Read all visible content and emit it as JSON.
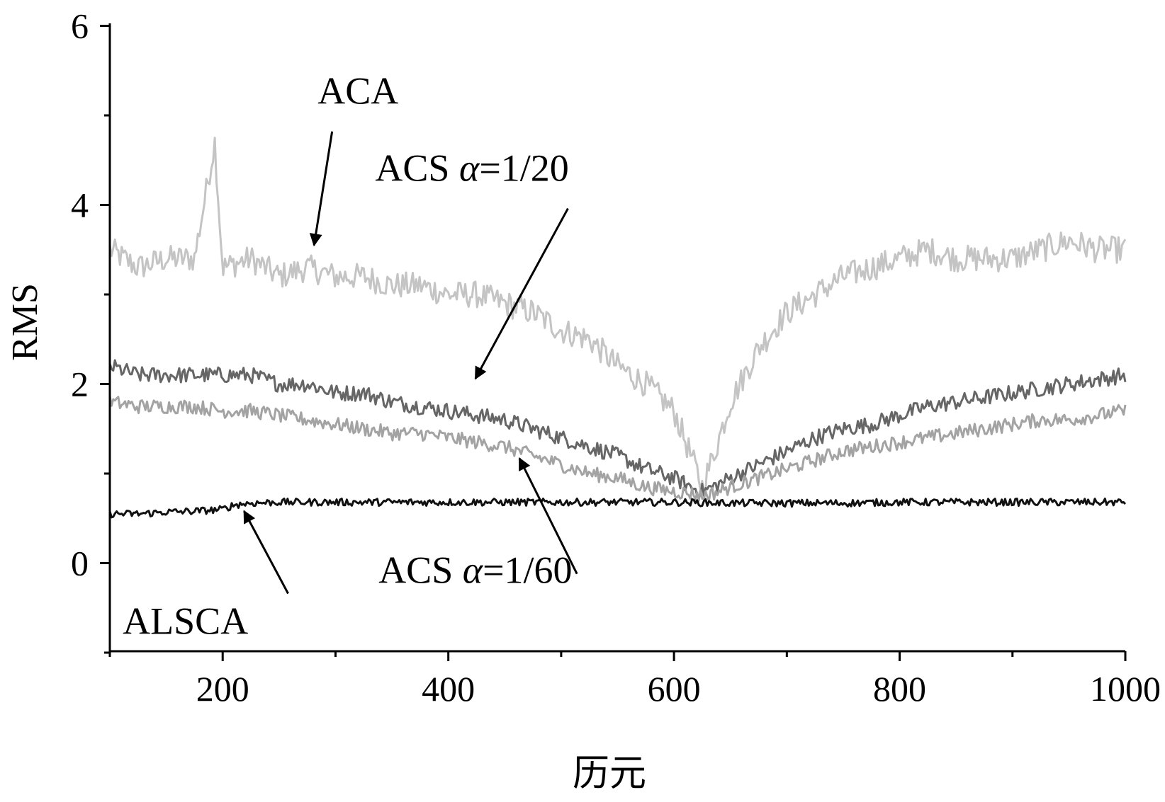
{
  "chart_data": {
    "type": "line",
    "title": "",
    "xlabel": "历元",
    "ylabel": "RMS",
    "xlim": [
      100,
      1000
    ],
    "ylim": [
      -1,
      6
    ],
    "xticks": [
      200,
      400,
      600,
      800,
      1000
    ],
    "yticks": [
      0,
      2,
      4,
      6
    ],
    "grid": false,
    "legend": "none",
    "series": [
      {
        "key": "aca",
        "color": "#c4c4c4",
        "x": [
          100,
          125,
          150,
          175,
          193,
          200,
          225,
          250,
          275,
          300,
          325,
          350,
          375,
          400,
          425,
          450,
          475,
          500,
          525,
          550,
          575,
          600,
          615,
          625,
          635,
          650,
          675,
          700,
          725,
          750,
          775,
          800,
          825,
          850,
          875,
          900,
          925,
          950,
          975,
          1000
        ],
        "y": [
          3.5,
          3.3,
          3.4,
          3.4,
          4.7,
          3.3,
          3.4,
          3.2,
          3.3,
          3.2,
          3.2,
          3.1,
          3.1,
          3.0,
          3.0,
          2.9,
          2.8,
          2.6,
          2.5,
          2.2,
          2.0,
          1.7,
          1.2,
          0.85,
          1.2,
          1.8,
          2.4,
          2.8,
          3.0,
          3.2,
          3.3,
          3.4,
          3.5,
          3.4,
          3.4,
          3.4,
          3.5,
          3.6,
          3.5,
          3.5
        ]
      },
      {
        "key": "acs20",
        "color": "#666666",
        "x": [
          100,
          125,
          150,
          175,
          200,
          225,
          250,
          275,
          300,
          325,
          350,
          375,
          400,
          425,
          450,
          475,
          500,
          525,
          550,
          575,
          600,
          615,
          625,
          635,
          650,
          675,
          700,
          725,
          750,
          775,
          800,
          825,
          850,
          875,
          900,
          925,
          950,
          975,
          1000
        ],
        "y": [
          2.2,
          2.1,
          2.1,
          2.1,
          2.1,
          2.1,
          2.0,
          2.0,
          1.9,
          1.9,
          1.8,
          1.75,
          1.7,
          1.65,
          1.6,
          1.5,
          1.4,
          1.3,
          1.2,
          1.05,
          0.95,
          0.85,
          0.8,
          0.85,
          0.95,
          1.1,
          1.25,
          1.4,
          1.5,
          1.55,
          1.65,
          1.75,
          1.8,
          1.85,
          1.9,
          1.95,
          2.0,
          2.05,
          2.1
        ]
      },
      {
        "key": "acs60",
        "color": "#a3a3a3",
        "x": [
          100,
          125,
          150,
          175,
          200,
          225,
          250,
          275,
          300,
          325,
          350,
          375,
          400,
          425,
          450,
          475,
          500,
          525,
          550,
          575,
          600,
          615,
          625,
          635,
          650,
          675,
          700,
          725,
          750,
          775,
          800,
          825,
          850,
          875,
          900,
          925,
          950,
          975,
          1000
        ],
        "y": [
          1.8,
          1.75,
          1.75,
          1.75,
          1.7,
          1.7,
          1.65,
          1.6,
          1.55,
          1.5,
          1.45,
          1.45,
          1.4,
          1.35,
          1.3,
          1.2,
          1.1,
          1.0,
          0.95,
          0.85,
          0.8,
          0.78,
          0.75,
          0.78,
          0.85,
          0.95,
          1.05,
          1.15,
          1.25,
          1.3,
          1.35,
          1.4,
          1.45,
          1.5,
          1.55,
          1.6,
          1.6,
          1.65,
          1.7
        ]
      },
      {
        "key": "alsca",
        "color": "#111111",
        "x": [
          100,
          125,
          150,
          175,
          200,
          210,
          225,
          250,
          275,
          300,
          350,
          400,
          450,
          500,
          550,
          600,
          650,
          700,
          750,
          800,
          850,
          900,
          950,
          1000
        ],
        "y": [
          0.55,
          0.55,
          0.57,
          0.58,
          0.6,
          0.65,
          0.67,
          0.68,
          0.68,
          0.68,
          0.68,
          0.68,
          0.68,
          0.68,
          0.68,
          0.68,
          0.67,
          0.67,
          0.67,
          0.68,
          0.68,
          0.68,
          0.68,
          0.68
        ]
      }
    ],
    "annotations": [
      {
        "key": "aca",
        "text": "ACA",
        "text_x": 320,
        "text_y": 5.13,
        "arrow_from": [
          297,
          4.82
        ],
        "arrow_to": [
          281,
          3.55
        ]
      },
      {
        "key": "acs20",
        "prefix": "ACS ",
        "alpha": "α",
        "suffix": "=1/20",
        "text_x": 421,
        "text_y": 4.27,
        "arrow_from": [
          506,
          3.96
        ],
        "arrow_to": [
          424,
          2.06
        ]
      },
      {
        "key": "acs60",
        "prefix": "ACS ",
        "alpha": "α",
        "suffix": "=1/60",
        "text_x": 424,
        "text_y": -0.22,
        "arrow_from": [
          514,
          -0.12
        ],
        "arrow_to": [
          463,
          1.17
        ]
      },
      {
        "key": "alsca",
        "text": "ALSCA",
        "text_x": 167,
        "text_y": -0.79,
        "arrow_from": [
          258,
          -0.34
        ],
        "arrow_to": [
          219,
          0.58
        ]
      }
    ]
  }
}
